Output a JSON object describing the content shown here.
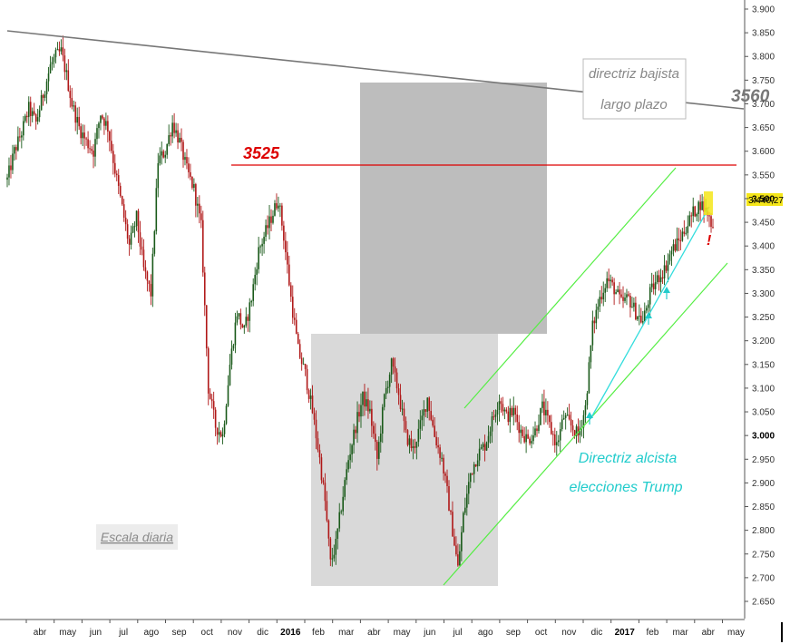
{
  "chart_data": {
    "type": "candlestick",
    "scale_note": "Escala diaria",
    "y_axis": {
      "side": "right",
      "ticks": [
        "3.900",
        "3.850",
        "3.800",
        "3.750",
        "3.700",
        "3.650",
        "3.600",
        "3.550",
        "3.500",
        "3.450",
        "3.400",
        "3.350",
        "3.300",
        "3.250",
        "3.200",
        "3.150",
        "3.100",
        "3.050",
        "3.000",
        "2.950",
        "2.900",
        "2.850",
        "2.800",
        "2.750",
        "2.700",
        "2.650"
      ],
      "tick_values": [
        3900,
        3850,
        3800,
        3750,
        3700,
        3650,
        3600,
        3550,
        3500,
        3450,
        3400,
        3350,
        3300,
        3250,
        3200,
        3150,
        3100,
        3050,
        3000,
        2950,
        2900,
        2850,
        2800,
        2750,
        2700,
        2650
      ],
      "bold_ticks": [
        "3.500",
        "3.000"
      ],
      "ylim": [
        2630,
        3910
      ]
    },
    "x_axis": {
      "labels": [
        "abr",
        "may",
        "jun",
        "jul",
        "ago",
        "sep",
        "oct",
        "nov",
        "dic",
        "2016",
        "feb",
        "mar",
        "abr",
        "may",
        "jun",
        "jul",
        "ago",
        "sep",
        "oct",
        "nov",
        "dic",
        "2017",
        "feb",
        "mar",
        "abr",
        "may"
      ],
      "bold_labels": [
        "2016",
        "2017"
      ]
    },
    "last_price": {
      "label": "3.440,27",
      "value": 3440.27,
      "color": "#f5e61a"
    },
    "series": [
      {
        "values": [
          [
            0,
            3540
          ],
          [
            4,
            3600
          ],
          [
            8,
            3640
          ],
          [
            12,
            3690
          ],
          [
            16,
            3660
          ],
          [
            20,
            3720
          ],
          [
            24,
            3780
          ],
          [
            27,
            3800
          ],
          [
            30,
            3810
          ],
          [
            33,
            3760
          ],
          [
            36,
            3700
          ],
          [
            40,
            3650
          ],
          [
            44,
            3620
          ],
          [
            48,
            3600
          ],
          [
            52,
            3680
          ],
          [
            56,
            3650
          ],
          [
            60,
            3560
          ],
          [
            64,
            3480
          ],
          [
            68,
            3400
          ],
          [
            72,
            3460
          ],
          [
            76,
            3350
          ],
          [
            80,
            3300
          ],
          [
            84,
            3580
          ],
          [
            88,
            3600
          ],
          [
            92,
            3660
          ],
          [
            96,
            3620
          ],
          [
            100,
            3560
          ],
          [
            104,
            3520
          ],
          [
            108,
            3440
          ],
          [
            112,
            3100
          ],
          [
            116,
            3020
          ],
          [
            120,
            3000
          ],
          [
            124,
            3150
          ],
          [
            128,
            3260
          ],
          [
            132,
            3220
          ],
          [
            136,
            3290
          ],
          [
            140,
            3390
          ],
          [
            144,
            3430
          ],
          [
            148,
            3470
          ],
          [
            151,
            3500
          ],
          [
            154,
            3420
          ],
          [
            158,
            3290
          ],
          [
            162,
            3180
          ],
          [
            166,
            3130
          ],
          [
            170,
            3050
          ],
          [
            174,
            2950
          ],
          [
            177,
            2860
          ],
          [
            180,
            2730
          ],
          [
            183,
            2770
          ],
          [
            186,
            2850
          ],
          [
            190,
            2950
          ],
          [
            194,
            3020
          ],
          [
            198,
            3080
          ],
          [
            202,
            3050
          ],
          [
            206,
            2950
          ],
          [
            210,
            3080
          ],
          [
            214,
            3150
          ],
          [
            218,
            3090
          ],
          [
            222,
            3000
          ],
          [
            226,
            2970
          ],
          [
            230,
            3020
          ],
          [
            234,
            3080
          ],
          [
            238,
            3000
          ],
          [
            242,
            2950
          ],
          [
            245,
            2880
          ],
          [
            248,
            2800
          ],
          [
            251,
            2720
          ],
          [
            254,
            2830
          ],
          [
            258,
            2920
          ],
          [
            262,
            2960
          ],
          [
            266,
            2980
          ],
          [
            270,
            3030
          ],
          [
            274,
            3080
          ],
          [
            278,
            3040
          ],
          [
            282,
            3050
          ],
          [
            286,
            3010
          ],
          [
            290,
            2990
          ],
          [
            294,
            3010
          ],
          [
            298,
            3060
          ],
          [
            302,
            3020
          ],
          [
            306,
            2980
          ],
          [
            310,
            3040
          ],
          [
            314,
            3020
          ],
          [
            318,
            3000
          ],
          [
            322,
            3060
          ],
          [
            326,
            3230
          ],
          [
            330,
            3290
          ],
          [
            334,
            3330
          ],
          [
            338,
            3310
          ],
          [
            342,
            3280
          ],
          [
            346,
            3290
          ],
          [
            350,
            3260
          ],
          [
            354,
            3240
          ],
          [
            358,
            3300
          ],
          [
            362,
            3330
          ],
          [
            366,
            3350
          ],
          [
            370,
            3390
          ],
          [
            374,
            3410
          ],
          [
            378,
            3440
          ],
          [
            382,
            3470
          ],
          [
            386,
            3490
          ],
          [
            390,
            3470
          ],
          [
            393,
            3440
          ]
        ]
      }
    ],
    "lines": [
      {
        "name": "3525",
        "color": "#dd0000"
      },
      {
        "name": "directriz bajista largo plazo",
        "value_label": "3560",
        "color": "#707070"
      },
      {
        "name": "Directriz alcista elecciones Trump",
        "color": "#22cccc"
      }
    ],
    "channel_color": "#55ee44",
    "zones": [
      {
        "label": "",
        "color": "#bbbbbb"
      },
      {
        "label": "",
        "color": "#d8d8d8"
      }
    ],
    "annotations": {
      "level_3525": "3525",
      "level_3560": "3560",
      "bearish_line_label": [
        "directriz bajista",
        "largo plazo"
      ],
      "trump_line_label": [
        "Directriz alcista",
        "elecciones Trump"
      ],
      "exclamation": "!"
    }
  }
}
